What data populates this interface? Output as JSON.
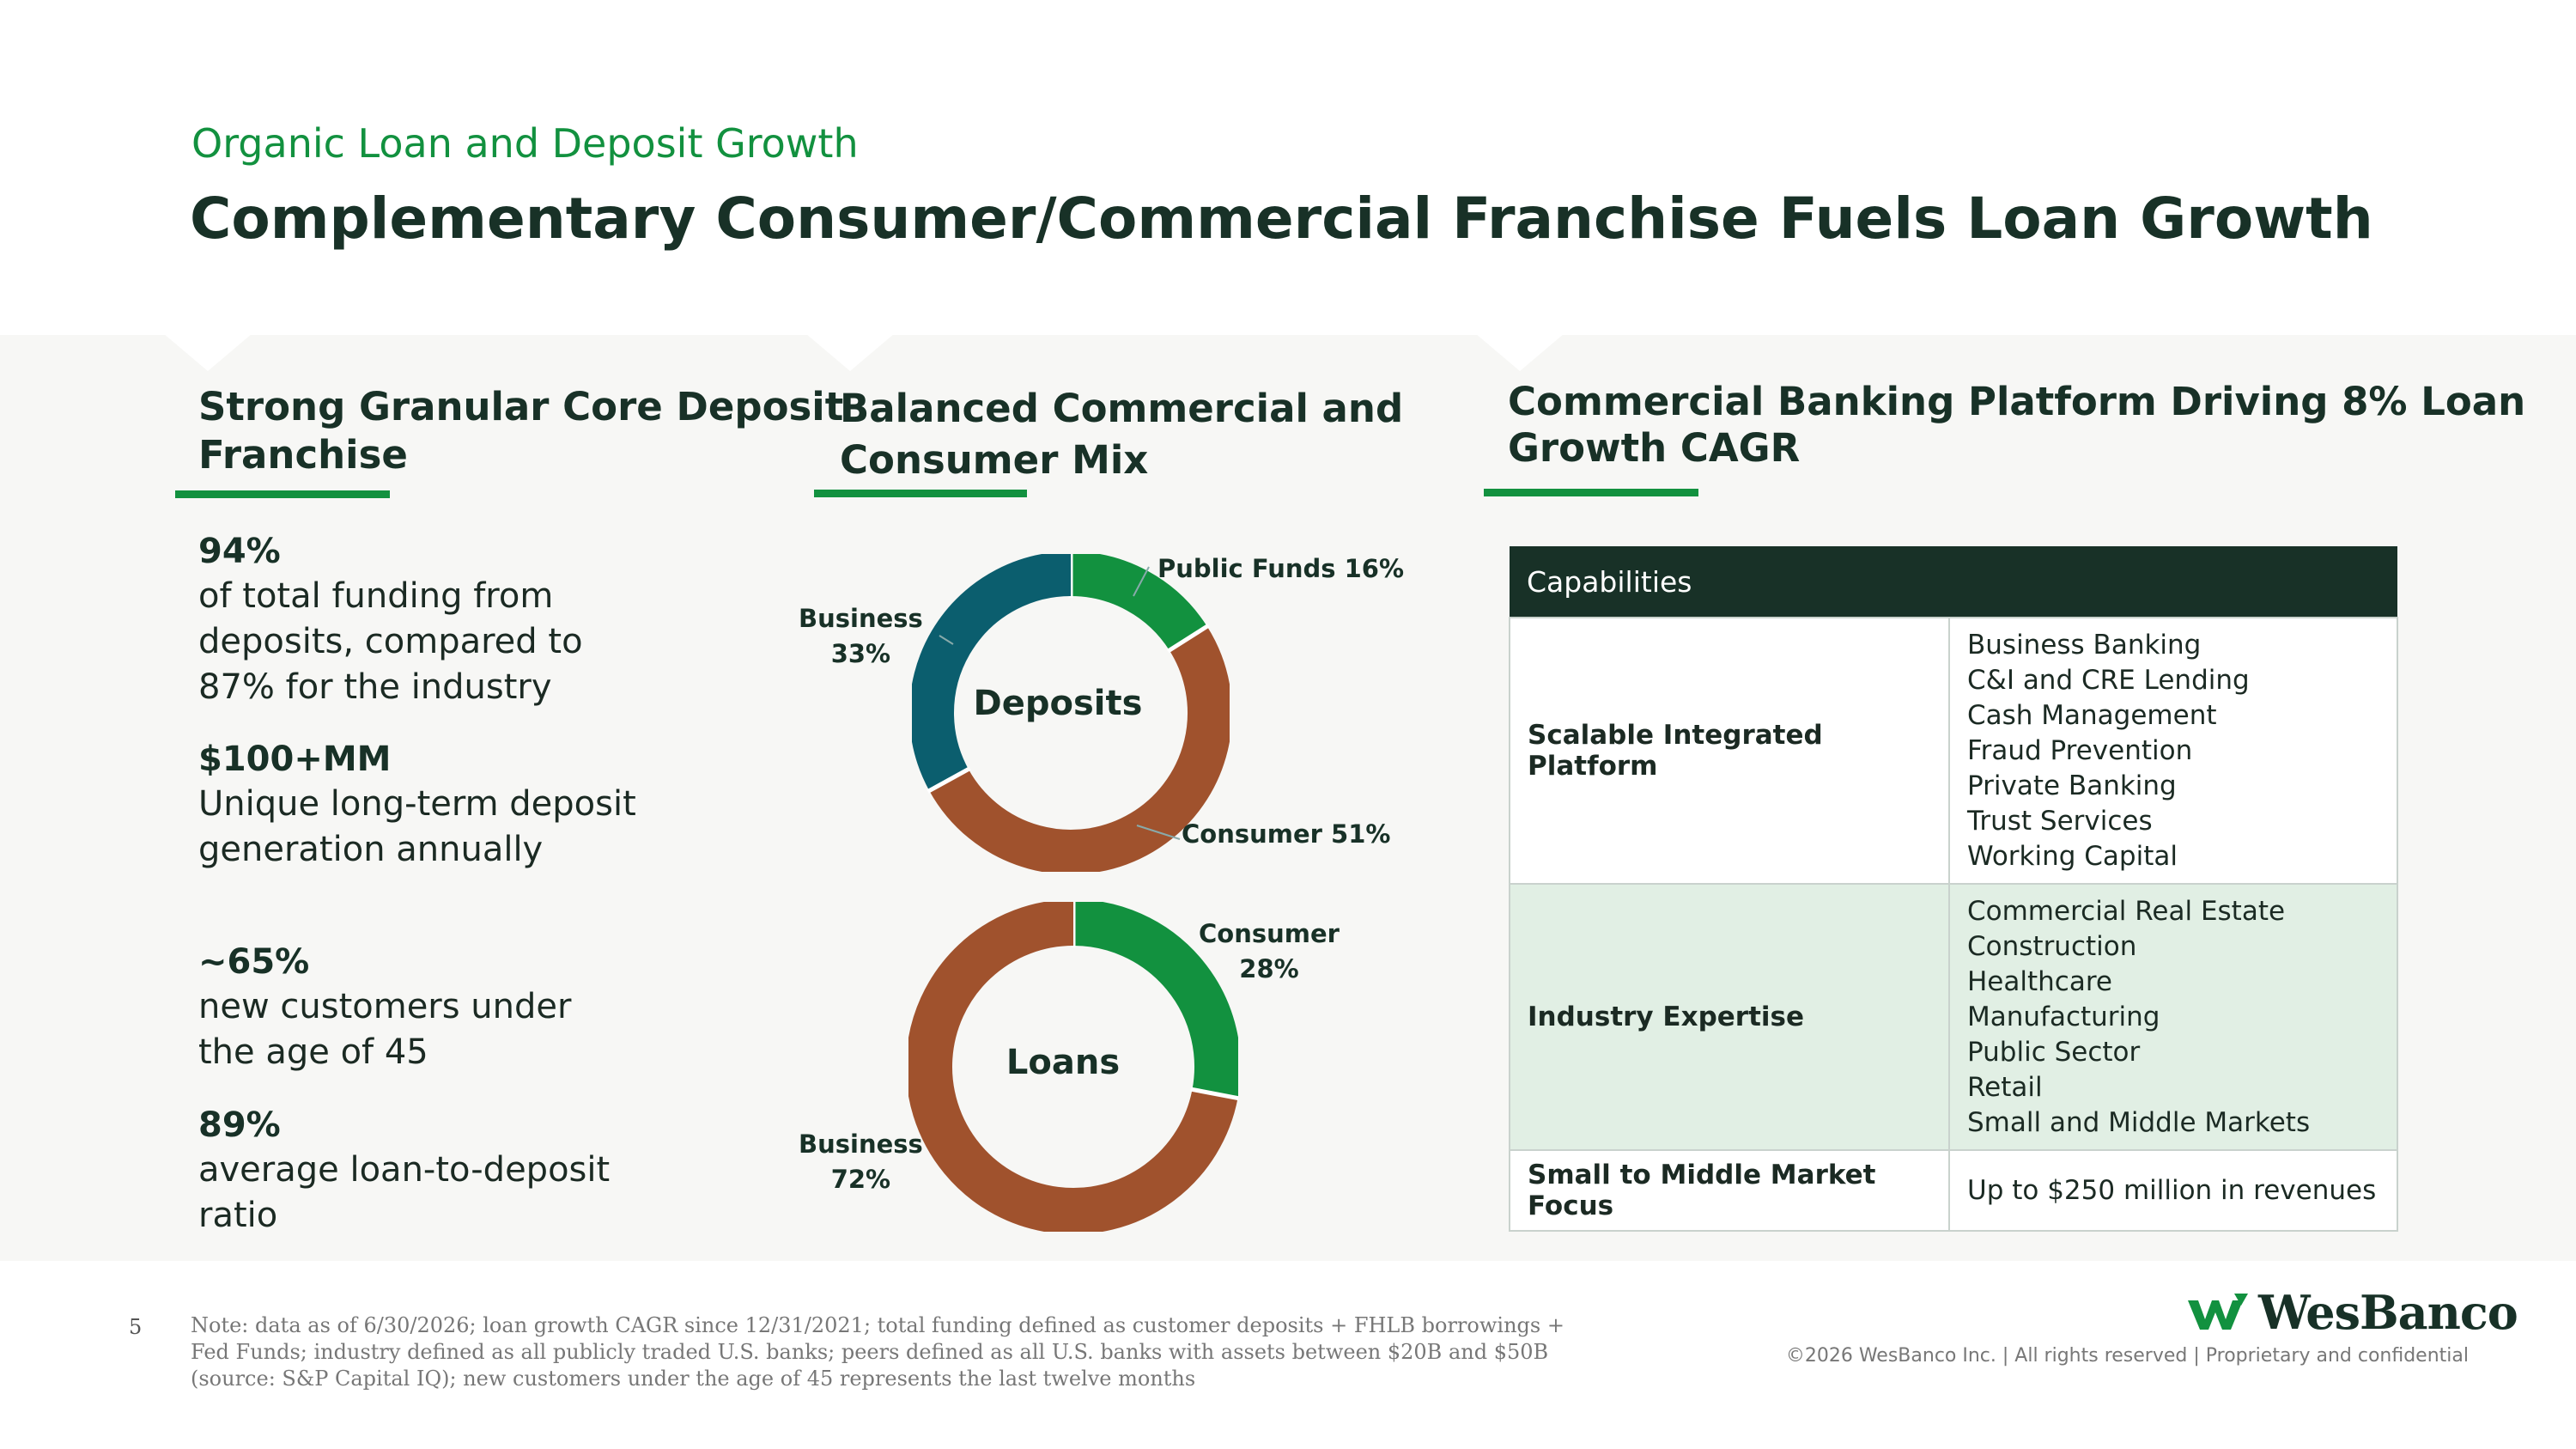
{
  "header": {
    "subtitle": "Organic Loan and Deposit Growth",
    "title": "Complementary Consumer/Commercial Franchise Fuels Loan Growth"
  },
  "col1": {
    "heading_line1": "Strong Granular Core Deposit",
    "heading_line2": "Franchise",
    "stats": [
      {
        "value": "94%",
        "text": "of total funding from deposits, compared to 87% for the industry"
      },
      {
        "value": "$100+MM",
        "text": "Unique long-term deposit generation annually"
      },
      {
        "value": "~65%",
        "text": "new customers under the age of 45"
      },
      {
        "value": "89%",
        "text": "average loan-to-deposit ratio"
      }
    ]
  },
  "col2": {
    "heading_line1": "Balanced Commercial and",
    "heading_line2": "Consumer Mix"
  },
  "col3": {
    "heading_line1": "Commercial Banking Platform Driving 8% Loan",
    "heading_line2": "Growth CAGR"
  },
  "chart_data": [
    {
      "type": "pie",
      "title": "Deposits",
      "slices": [
        {
          "label": "Public Funds",
          "value": 16,
          "display": "Public Funds 16%",
          "color": "#12913f"
        },
        {
          "label": "Consumer",
          "value": 51,
          "display": "Consumer 51%",
          "color": "#a0522d"
        },
        {
          "label": "Business",
          "value": 33,
          "display": "Business\n33%",
          "color": "#0b5e6e"
        }
      ]
    },
    {
      "type": "pie",
      "title": "Loans",
      "slices": [
        {
          "label": "Consumer",
          "value": 28,
          "display": "Consumer\n28%",
          "color": "#12913f"
        },
        {
          "label": "Business",
          "value": 72,
          "display": "Business\n72%",
          "color": "#a0522d"
        }
      ]
    }
  ],
  "table": {
    "header": "Capabilities",
    "rows": [
      {
        "key": "Scalable Integrated Platform",
        "items": [
          "Business Banking",
          "C&I and CRE Lending",
          "Cash Management",
          "Fraud Prevention",
          "Private Banking",
          "Trust Services",
          "Working Capital"
        ]
      },
      {
        "key": "Industry Expertise",
        "items": [
          "Commercial Real Estate",
          "Construction",
          "Healthcare",
          "Manufacturing",
          "Public Sector",
          "Retail",
          "Small and Middle Markets"
        ]
      },
      {
        "key": "Small to Middle Market Focus",
        "items": [
          "Up to $250 million in revenues"
        ]
      }
    ]
  },
  "footer": {
    "page_number": "5",
    "note": "Note: data as of 6/30/2026; loan growth CAGR since 12/31/2021; total funding defined as customer deposits + FHLB borrowings + Fed Funds; industry defined as all publicly traded U.S. banks; peers defined as all U.S. banks with assets between $20B and $50B (source: S&P Capital IQ); new customers under the age of 45 represents the last twelve months",
    "logo_text": "WesBanco",
    "copyright": "©2026 WesBanco Inc.  |  All rights reserved  |  Proprietary and confidential"
  }
}
